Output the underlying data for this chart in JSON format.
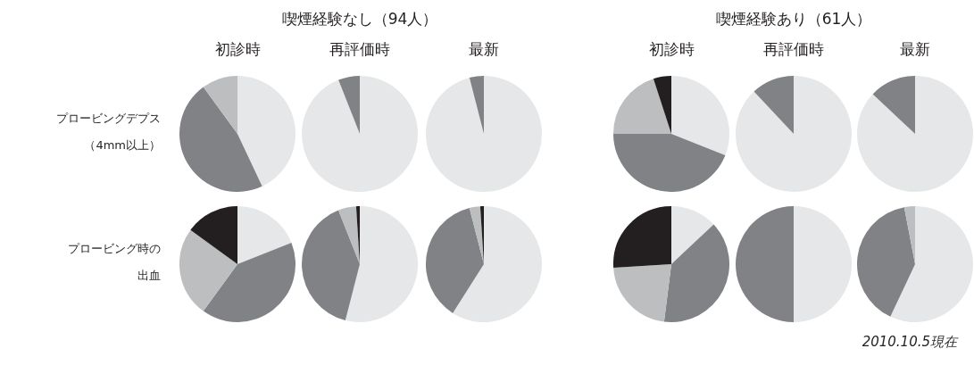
{
  "chart_data": [
    {
      "type": "other",
      "annotations": [
        "喫煙経験なし（94人）",
        "喫煙経験あり（61人）",
        "2010.10.5現在"
      ]
    },
    {
      "type": "pie",
      "title": "初診時",
      "ylabel": "プロービングデプス（4mm以上）",
      "categories": [
        null,
        null,
        null
      ],
      "values": [
        43,
        47,
        10
      ],
      "colors": [
        "#e6e7e8",
        "#808285",
        "#bcbec0"
      ]
    },
    {
      "type": "pie",
      "title": "再評価時",
      "categories": [
        null,
        null
      ],
      "values": [
        94,
        6
      ],
      "colors": [
        "#e6e7e8",
        "#808285"
      ]
    },
    {
      "type": "pie",
      "title": "最新",
      "categories": [
        null,
        null
      ],
      "values": [
        96,
        4
      ],
      "colors": [
        "#e6e7e8",
        "#808285"
      ]
    },
    {
      "type": "pie",
      "title": "初診時",
      "categories": [
        null,
        null,
        null,
        null
      ],
      "values": [
        31,
        44,
        20,
        5
      ],
      "colors": [
        "#e6e7e8",
        "#808285",
        "#bcbec0",
        "#231f20"
      ]
    },
    {
      "type": "pie",
      "title": "再評価時",
      "categories": [
        null,
        null
      ],
      "values": [
        88,
        12
      ],
      "colors": [
        "#e6e7e8",
        "#808285"
      ]
    },
    {
      "type": "pie",
      "title": "最新",
      "categories": [
        null,
        null
      ],
      "values": [
        87,
        13
      ],
      "colors": [
        "#e6e7e8",
        "#808285"
      ]
    },
    {
      "type": "pie",
      "ylabel": "プロービング時の出血",
      "categories": [
        null,
        null,
        null,
        null
      ],
      "values": [
        19,
        41,
        25,
        15
      ],
      "colors": [
        "#e6e7e8",
        "#808285",
        "#bcbec0",
        "#231f20"
      ]
    },
    {
      "type": "pie",
      "categories": [
        null,
        null,
        null,
        null
      ],
      "values": [
        54,
        40,
        5,
        1
      ],
      "colors": [
        "#e6e7e8",
        "#808285",
        "#bcbec0",
        "#231f20"
      ]
    },
    {
      "type": "pie",
      "categories": [
        null,
        null,
        null,
        null
      ],
      "values": [
        59,
        37,
        3,
        1
      ],
      "colors": [
        "#e6e7e8",
        "#808285",
        "#bcbec0",
        "#231f20"
      ]
    },
    {
      "type": "pie",
      "categories": [
        null,
        null,
        null,
        null
      ],
      "values": [
        13,
        39,
        22,
        26
      ],
      "colors": [
        "#e6e7e8",
        "#808285",
        "#bcbec0",
        "#231f20"
      ]
    },
    {
      "type": "pie",
      "categories": [
        null,
        null
      ],
      "values": [
        50,
        50
      ],
      "colors": [
        "#e6e7e8",
        "#808285"
      ]
    },
    {
      "type": "pie",
      "categories": [
        null,
        null,
        null
      ],
      "values": [
        57,
        40,
        3
      ],
      "colors": [
        "#e6e7e8",
        "#808285",
        "#bcbec0"
      ]
    }
  ]
}
